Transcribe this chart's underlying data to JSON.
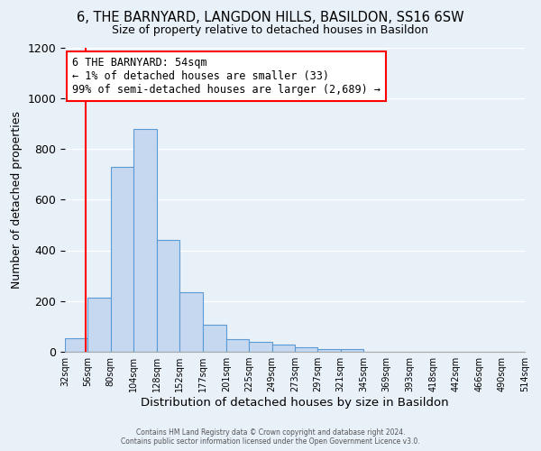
{
  "title": "6, THE BARNYARD, LANGDON HILLS, BASILDON, SS16 6SW",
  "subtitle": "Size of property relative to detached houses in Basildon",
  "xlabel": "Distribution of detached houses by size in Basildon",
  "ylabel": "Number of detached properties",
  "bar_left_edges": [
    32,
    56,
    80,
    104,
    128,
    152,
    177,
    201,
    225,
    249,
    273,
    297,
    321,
    345,
    369,
    393,
    418,
    442,
    466,
    490
  ],
  "bar_heights": [
    55,
    215,
    730,
    880,
    440,
    235,
    105,
    50,
    40,
    30,
    18,
    12,
    10,
    0,
    0,
    0,
    0,
    0,
    0,
    0
  ],
  "bar_widths": [
    24,
    24,
    24,
    24,
    24,
    25,
    24,
    24,
    24,
    24,
    24,
    24,
    24,
    24,
    24,
    25,
    24,
    24,
    24,
    24
  ],
  "xtick_labels": [
    "32sqm",
    "56sqm",
    "80sqm",
    "104sqm",
    "128sqm",
    "152sqm",
    "177sqm",
    "201sqm",
    "225sqm",
    "249sqm",
    "273sqm",
    "297sqm",
    "321sqm",
    "345sqm",
    "369sqm",
    "393sqm",
    "418sqm",
    "442sqm",
    "466sqm",
    "490sqm",
    "514sqm"
  ],
  "ylim": [
    0,
    1200
  ],
  "xlim": [
    32,
    514
  ],
  "bar_color": "#c5d8f0",
  "bar_edge_color": "#5b9bd5",
  "bg_color": "#e8f0f8",
  "grid_color": "#ffffff",
  "red_line_x": 54,
  "annotation_title": "6 THE BARNYARD: 54sqm",
  "annotation_line1": "← 1% of detached houses are smaller (33)",
  "annotation_line2": "99% of semi-detached houses are larger (2,689) →",
  "footer1": "Contains HM Land Registry data © Crown copyright and database right 2024.",
  "footer2": "Contains public sector information licensed under the Open Government Licence v3.0."
}
